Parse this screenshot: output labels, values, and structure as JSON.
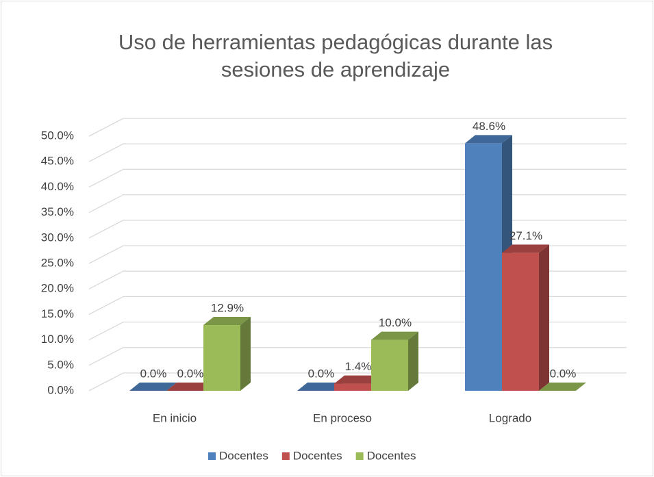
{
  "chart_data": {
    "type": "bar3d",
    "title": "Uso de herramientas pedagógicas durante las sesiones de aprendizaje",
    "categories": [
      "En inicio",
      "En proceso",
      "Logrado"
    ],
    "series": [
      {
        "name": "Docentes",
        "color": "#4f81bd",
        "values": [
          0.0,
          0.0,
          48.6
        ],
        "value_labels": [
          "0.0%",
          "0.0%",
          "48.6%"
        ]
      },
      {
        "name": "Docentes",
        "color": "#c0504d",
        "values": [
          0.0,
          1.4,
          27.1
        ],
        "value_labels": [
          "0.0%",
          "1.4%",
          "27.1%"
        ]
      },
      {
        "name": "Docentes",
        "color": "#9bbb59",
        "values": [
          12.9,
          10.0,
          0.0
        ],
        "value_labels": [
          "12.9%",
          "10.0%",
          "0.0%"
        ]
      }
    ],
    "ylim": [
      0,
      50
    ],
    "yticks": [
      {
        "value": 0,
        "label": "0.0%"
      },
      {
        "value": 5,
        "label": "5.0%"
      },
      {
        "value": 10,
        "label": "10.0%"
      },
      {
        "value": 15,
        "label": "15.0%"
      },
      {
        "value": 20,
        "label": "20.0%"
      },
      {
        "value": 25,
        "label": "25.0%"
      },
      {
        "value": 30,
        "label": "30.0%"
      },
      {
        "value": 35,
        "label": "35.0%"
      },
      {
        "value": 40,
        "label": "40.0%"
      },
      {
        "value": 45,
        "label": "45.0%"
      },
      {
        "value": 50,
        "label": "50.0%"
      }
    ],
    "grid": true,
    "legend": "bottom"
  }
}
